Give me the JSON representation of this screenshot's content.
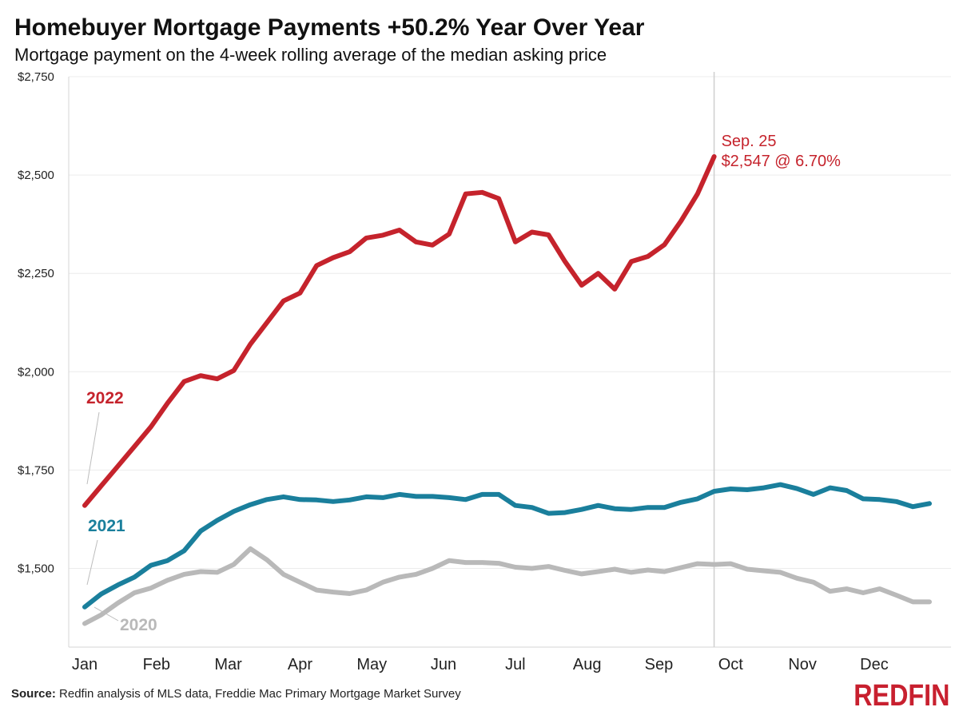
{
  "header": {
    "title": "Homebuyer Mortgage Payments +50.2% Year Over Year",
    "subtitle": "Mortgage payment on the 4-week rolling average of the median asking price"
  },
  "footer": {
    "source_label": "Source:",
    "source_text": " Redfin analysis of MLS data, Freddie Mac Primary Mortgage Market Survey",
    "logo": "REDFIN"
  },
  "chart_data": {
    "type": "line",
    "title": "Homebuyer Mortgage Payments +50.2% Year Over Year",
    "subtitle": "Mortgage payment on the 4-week rolling average of the median asking price",
    "xlabel": "",
    "ylabel": "",
    "x_unit": "week of year",
    "x_range": [
      1,
      52
    ],
    "ylim": [
      1300,
      2750
    ],
    "yticks": [
      1500,
      1750,
      2000,
      2250,
      2500,
      2750
    ],
    "ytick_labels": [
      "$1,500",
      "$1,750",
      "$2,000",
      "$2,250",
      "$2,500",
      "$2,750"
    ],
    "months": [
      "Jan",
      "Feb",
      "Mar",
      "Apr",
      "May",
      "Jun",
      "Jul",
      "Aug",
      "Sep",
      "Oct",
      "Nov",
      "Dec"
    ],
    "grid": true,
    "colors": {
      "2022": "#c5232c",
      "2021": "#1a7f9c",
      "2020": "#b9b9b9",
      "axis": "#d6d6d6"
    },
    "series": [
      {
        "name": "2022",
        "color": "#c5232c",
        "x": [
          1,
          2,
          3,
          4,
          5,
          6,
          7,
          8,
          9,
          10,
          11,
          12,
          13,
          14,
          15,
          16,
          17,
          18,
          19,
          20,
          21,
          22,
          23,
          24,
          25,
          26,
          27,
          28,
          29,
          30,
          31,
          32,
          33,
          34,
          35,
          36,
          37,
          38,
          39
        ],
        "values": [
          1660,
          1710,
          1760,
          1810,
          1860,
          1920,
          1975,
          1990,
          1982,
          2003,
          2070,
          2125,
          2180,
          2200,
          2270,
          2290,
          2305,
          2340,
          2347,
          2360,
          2330,
          2322,
          2350,
          2452,
          2456,
          2440,
          2330,
          2355,
          2348,
          2280,
          2220,
          2250,
          2210,
          2280,
          2293,
          2323,
          2383,
          2452,
          2547
        ]
      },
      {
        "name": "2021",
        "color": "#1a7f9c",
        "x": [
          1,
          2,
          3,
          4,
          5,
          6,
          7,
          8,
          9,
          10,
          11,
          12,
          13,
          14,
          15,
          16,
          17,
          18,
          19,
          20,
          21,
          22,
          23,
          24,
          25,
          26,
          27,
          28,
          29,
          30,
          31,
          32,
          33,
          34,
          35,
          36,
          37,
          38,
          39,
          40,
          41,
          42,
          43,
          44,
          45,
          46,
          47,
          48,
          49,
          50,
          51,
          52
        ],
        "values": [
          1402,
          1435,
          1458,
          1478,
          1508,
          1520,
          1545,
          1595,
          1622,
          1645,
          1662,
          1675,
          1682,
          1675,
          1674,
          1670,
          1674,
          1682,
          1680,
          1688,
          1683,
          1683,
          1680,
          1675,
          1688,
          1688,
          1660,
          1655,
          1640,
          1642,
          1650,
          1660,
          1652,
          1650,
          1655,
          1655,
          1668,
          1677,
          1696,
          1702,
          1700,
          1705,
          1713,
          1703,
          1688,
          1705,
          1698,
          1677,
          1675,
          1670,
          1657,
          1665
        ]
      },
      {
        "name": "2020",
        "color": "#b9b9b9",
        "x": [
          1,
          2,
          3,
          4,
          5,
          6,
          7,
          8,
          9,
          10,
          11,
          12,
          13,
          14,
          15,
          16,
          17,
          18,
          19,
          20,
          21,
          22,
          23,
          24,
          25,
          26,
          27,
          28,
          29,
          30,
          31,
          32,
          33,
          34,
          35,
          36,
          37,
          38,
          39,
          40,
          41,
          42,
          43,
          44,
          45,
          46,
          47,
          48,
          49,
          50,
          51,
          52
        ],
        "values": [
          1360,
          1382,
          1412,
          1438,
          1450,
          1470,
          1485,
          1492,
          1490,
          1510,
          1550,
          1522,
          1485,
          1465,
          1445,
          1440,
          1436,
          1445,
          1465,
          1478,
          1485,
          1500,
          1520,
          1515,
          1515,
          1513,
          1503,
          1500,
          1505,
          1495,
          1486,
          1492,
          1498,
          1490,
          1496,
          1492,
          1502,
          1512,
          1510,
          1512,
          1498,
          1494,
          1490,
          1475,
          1465,
          1442,
          1448,
          1438,
          1448,
          1432,
          1415,
          1415
        ]
      }
    ],
    "annotations": [
      {
        "text": "Sep. 25",
        "color": "#c5232c"
      },
      {
        "text": "$2,547 @ 6.70%",
        "color": "#c5232c"
      }
    ]
  }
}
